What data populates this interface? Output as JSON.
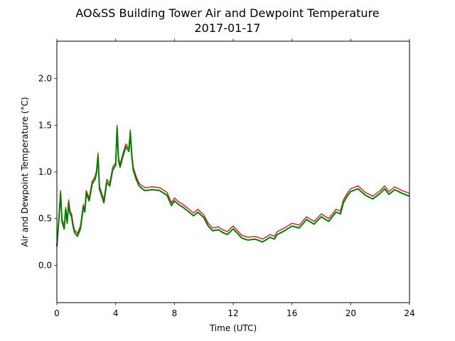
{
  "chart_data": {
    "type": "line",
    "title": "AO&SS Building Tower Air and Dewpoint Temperature",
    "subtitle": "2017-01-17",
    "xlabel": "Time (UTC)",
    "ylabel": "Air and Dewpoint Temperature (°C)",
    "xlim": [
      0,
      24
    ],
    "ylim": [
      -0.4,
      2.4
    ],
    "xticks": [
      0,
      4,
      8,
      12,
      16,
      20,
      24
    ],
    "xtick_labels": [
      "0",
      "4",
      "8",
      "12",
      "16",
      "20",
      "24"
    ],
    "yticks": [
      0.0,
      0.5,
      1.0,
      1.5,
      2.0
    ],
    "ytick_labels": [
      "0.0",
      "0.5",
      "1.0",
      "1.5",
      "2.0"
    ],
    "grid": false,
    "x": [
      0.0,
      0.15,
      0.25,
      0.35,
      0.5,
      0.6,
      0.7,
      0.8,
      0.9,
      1.0,
      1.1,
      1.2,
      1.4,
      1.6,
      1.8,
      1.9,
      2.0,
      2.2,
      2.4,
      2.6,
      2.7,
      2.8,
      2.9,
      3.0,
      3.2,
      3.4,
      3.6,
      3.8,
      4.0,
      4.1,
      4.2,
      4.3,
      4.5,
      4.7,
      4.9,
      5.0,
      5.1,
      5.2,
      5.4,
      5.6,
      5.8,
      6.0,
      6.5,
      7.0,
      7.5,
      7.8,
      8.0,
      8.3,
      8.6,
      9.0,
      9.3,
      9.6,
      10.0,
      10.3,
      10.6,
      11.0,
      11.3,
      11.6,
      12.0,
      12.3,
      12.6,
      13.0,
      13.5,
      14.0,
      14.5,
      14.8,
      15.0,
      15.5,
      16.0,
      16.5,
      17.0,
      17.5,
      18.0,
      18.5,
      19.0,
      19.3,
      19.5,
      19.8,
      20.0,
      20.5,
      21.0,
      21.5,
      22.0,
      22.3,
      22.6,
      23.0,
      23.5,
      24.0
    ],
    "series": [
      {
        "values": [
          0.22,
          0.55,
          0.8,
          0.5,
          0.42,
          0.62,
          0.48,
          0.7,
          0.58,
          0.55,
          0.45,
          0.38,
          0.34,
          0.42,
          0.65,
          0.6,
          0.8,
          0.72,
          0.9,
          0.95,
          1.02,
          1.2,
          0.85,
          0.8,
          0.7,
          0.92,
          0.88,
          1.05,
          1.1,
          1.5,
          1.15,
          1.08,
          1.2,
          1.3,
          1.25,
          1.45,
          1.2,
          1.05,
          0.95,
          0.88,
          0.85,
          0.83,
          0.84,
          0.83,
          0.78,
          0.67,
          0.72,
          0.68,
          0.65,
          0.6,
          0.56,
          0.6,
          0.54,
          0.45,
          0.4,
          0.41,
          0.38,
          0.36,
          0.42,
          0.37,
          0.32,
          0.3,
          0.31,
          0.28,
          0.33,
          0.31,
          0.36,
          0.4,
          0.45,
          0.43,
          0.52,
          0.47,
          0.55,
          0.5,
          0.6,
          0.58,
          0.7,
          0.78,
          0.82,
          0.85,
          0.78,
          0.74,
          0.8,
          0.85,
          0.79,
          0.84,
          0.8,
          0.77
        ]
      },
      {
        "values": [
          0.2,
          0.52,
          0.77,
          0.47,
          0.39,
          0.6,
          0.45,
          0.67,
          0.55,
          0.52,
          0.42,
          0.35,
          0.31,
          0.39,
          0.62,
          0.57,
          0.77,
          0.69,
          0.87,
          0.92,
          0.99,
          1.17,
          0.82,
          0.77,
          0.67,
          0.89,
          0.85,
          1.02,
          1.07,
          1.47,
          1.12,
          1.05,
          1.17,
          1.27,
          1.22,
          1.42,
          1.17,
          1.02,
          0.92,
          0.85,
          0.82,
          0.8,
          0.81,
          0.8,
          0.75,
          0.64,
          0.69,
          0.65,
          0.62,
          0.57,
          0.53,
          0.57,
          0.51,
          0.42,
          0.37,
          0.38,
          0.35,
          0.33,
          0.39,
          0.34,
          0.29,
          0.27,
          0.28,
          0.25,
          0.3,
          0.28,
          0.33,
          0.37,
          0.42,
          0.4,
          0.49,
          0.44,
          0.52,
          0.47,
          0.57,
          0.55,
          0.67,
          0.75,
          0.79,
          0.82,
          0.75,
          0.71,
          0.77,
          0.82,
          0.76,
          0.81,
          0.77,
          0.74
        ]
      }
    ],
    "series_colors": [
      "#d62728",
      "#008000"
    ]
  }
}
